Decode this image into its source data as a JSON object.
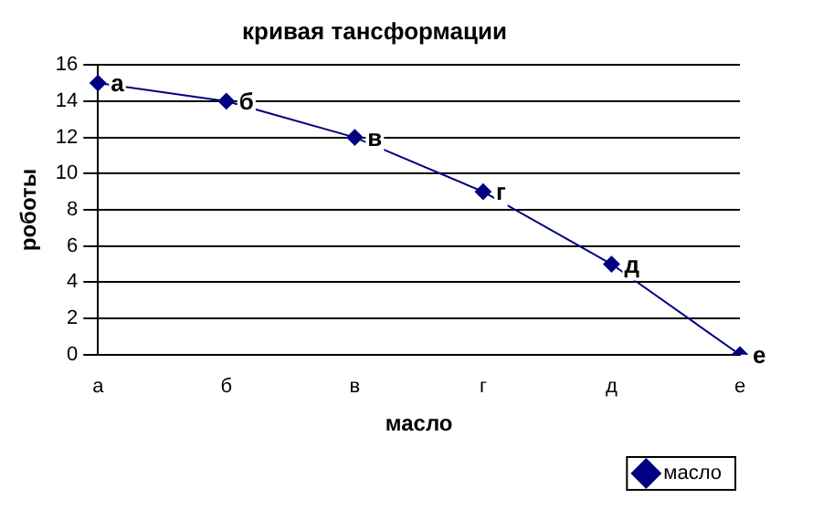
{
  "chart_data": {
    "type": "line",
    "title": "кривая тансформации",
    "xlabel": "масло",
    "ylabel": "роботы",
    "categories": [
      "а",
      "б",
      "в",
      "г",
      "д",
      "е"
    ],
    "series": [
      {
        "name": "масло",
        "color": "#000080",
        "values": [
          15,
          14,
          12,
          9,
          5,
          0
        ]
      }
    ],
    "ylim": [
      0,
      16
    ],
    "yticks": [
      0,
      2,
      4,
      6,
      8,
      10,
      12,
      14,
      16
    ],
    "grid": "y",
    "legend": "bottom right",
    "marker": "diamond",
    "line_style": "solid",
    "annotations": [
      {
        "text": "а",
        "x": "а",
        "y": 15
      },
      {
        "text": "б",
        "x": "б",
        "y": 14
      },
      {
        "text": "в",
        "x": "в",
        "y": 12
      },
      {
        "text": "г",
        "x": "г",
        "y": 9
      },
      {
        "text": "д",
        "x": "д",
        "y": 5
      },
      {
        "text": "е",
        "x": "е",
        "y": 0
      }
    ]
  }
}
